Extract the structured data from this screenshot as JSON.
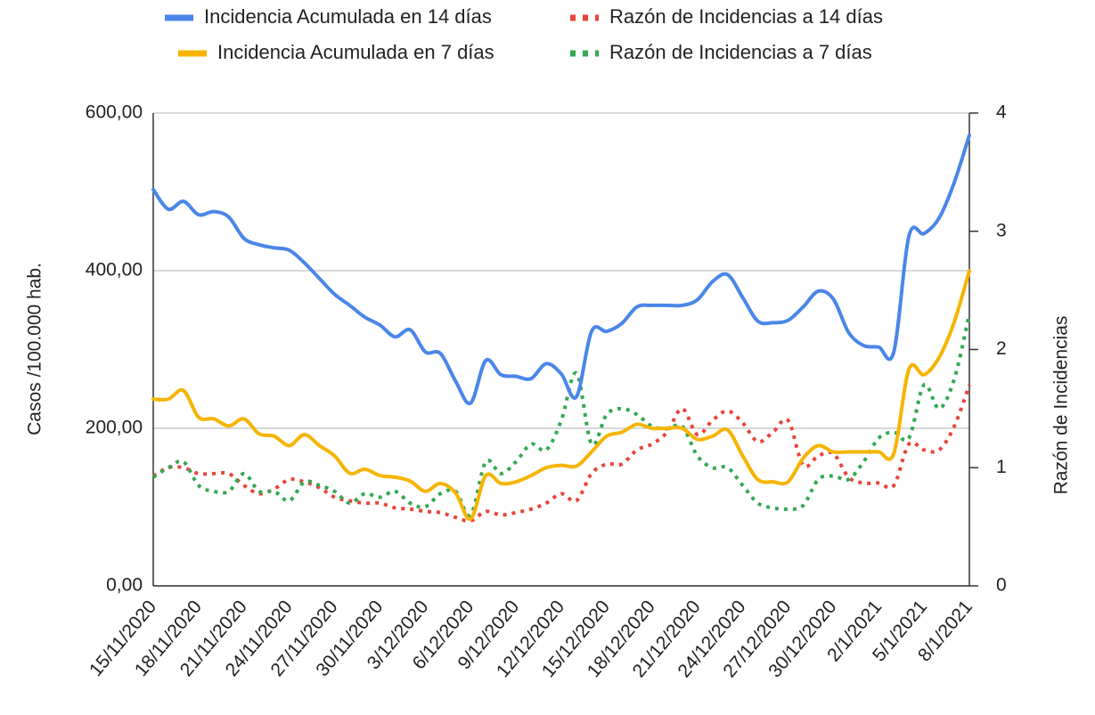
{
  "chart_data": {
    "type": "line",
    "categories": [
      "15/11/2020",
      null,
      null,
      "18/11/2020",
      null,
      null,
      "21/11/2020",
      null,
      null,
      "24/11/2020",
      null,
      null,
      "27/11/2020",
      null,
      null,
      "30/11/2020",
      null,
      null,
      "3/12/2020",
      null,
      null,
      "6/12/2020",
      null,
      null,
      "9/12/2020",
      null,
      null,
      "12/12/2020",
      null,
      null,
      "15/12/2020",
      null,
      null,
      "18/12/2020",
      null,
      null,
      "21/12/2020",
      null,
      null,
      "24/12/2020",
      null,
      null,
      "27/12/2020",
      null,
      null,
      "30/12/2020",
      null,
      null,
      "2/1/2021",
      null,
      null,
      "5/1/2021",
      null,
      null,
      "8/1/2021"
    ],
    "series": [
      {
        "name": "Incidencia Acumulada en 14 días",
        "color": "#4a86e8",
        "axis": "y",
        "values": [
          503,
          478,
          488,
          471,
          475,
          468,
          441,
          433,
          429,
          426,
          410,
          390,
          370,
          356,
          341,
          331,
          316,
          325,
          297,
          295,
          260,
          232,
          286,
          268,
          266,
          263,
          282,
          269,
          240,
          323,
          323,
          333,
          354,
          356,
          356,
          356,
          363,
          386,
          395,
          366,
          336,
          334,
          337,
          354,
          374,
          364,
          322,
          305,
          303,
          297,
          444,
          447,
          467,
          512,
          572
        ]
      },
      {
        "name": "Razón de Incidencias a 14 días",
        "color": "#e8453c",
        "axis": "y2",
        "dotted": true,
        "values": [
          0.93,
          1.0,
          1.0,
          0.95,
          0.95,
          0.95,
          0.85,
          0.78,
          0.82,
          0.9,
          0.88,
          0.83,
          0.75,
          0.72,
          0.7,
          0.7,
          0.66,
          0.65,
          0.63,
          0.62,
          0.58,
          0.55,
          0.63,
          0.6,
          0.62,
          0.65,
          0.7,
          0.78,
          0.72,
          0.95,
          1.03,
          1.03,
          1.15,
          1.2,
          1.3,
          1.5,
          1.28,
          1.4,
          1.48,
          1.38,
          1.22,
          1.3,
          1.4,
          1.02,
          1.1,
          1.12,
          0.92,
          0.87,
          0.87,
          0.85,
          1.2,
          1.15,
          1.15,
          1.35,
          1.7
        ]
      },
      {
        "name": "Incidencia Acumulada en 7 días",
        "color": "#f6b400",
        "axis": "y",
        "values": [
          237,
          237,
          248,
          214,
          212,
          203,
          212,
          193,
          190,
          178,
          192,
          178,
          165,
          143,
          148,
          140,
          138,
          133,
          120,
          130,
          118,
          85,
          140,
          130,
          132,
          140,
          150,
          153,
          152,
          170,
          190,
          195,
          205,
          200,
          200,
          200,
          186,
          190,
          198,
          165,
          135,
          132,
          132,
          162,
          178,
          170,
          170,
          170,
          170,
          168,
          275,
          268,
          290,
          335,
          400
        ]
      },
      {
        "name": "Razón de Incidencias a 7 días",
        "color": "#34a853",
        "axis": "y2",
        "dotted": true,
        "values": [
          0.92,
          1.0,
          1.05,
          0.85,
          0.8,
          0.8,
          0.95,
          0.8,
          0.8,
          0.72,
          0.88,
          0.85,
          0.8,
          0.7,
          0.78,
          0.75,
          0.8,
          0.7,
          0.67,
          0.78,
          0.8,
          0.6,
          1.05,
          0.95,
          1.05,
          1.2,
          1.15,
          1.4,
          1.8,
          1.2,
          1.45,
          1.5,
          1.45,
          1.35,
          1.33,
          1.35,
          1.1,
          1.0,
          1.0,
          0.85,
          0.7,
          0.66,
          0.65,
          0.68,
          0.9,
          0.93,
          0.9,
          1.05,
          1.25,
          1.3,
          1.25,
          1.7,
          1.5,
          1.75,
          2.3
        ]
      }
    ],
    "ylabel": "Casos /100.000 hab.",
    "y2label": "Razón de Incidencias",
    "ylim": [
      0,
      600
    ],
    "yticks": [
      {
        "value": 0,
        "label": "0,00"
      },
      {
        "value": 200,
        "label": "200,00"
      },
      {
        "value": 400,
        "label": "400,00"
      },
      {
        "value": 600,
        "label": "600,00"
      }
    ],
    "y2lim": [
      0,
      4
    ],
    "y2ticks": [
      0,
      1,
      2,
      3,
      4
    ],
    "grid": true,
    "legend": "top"
  }
}
